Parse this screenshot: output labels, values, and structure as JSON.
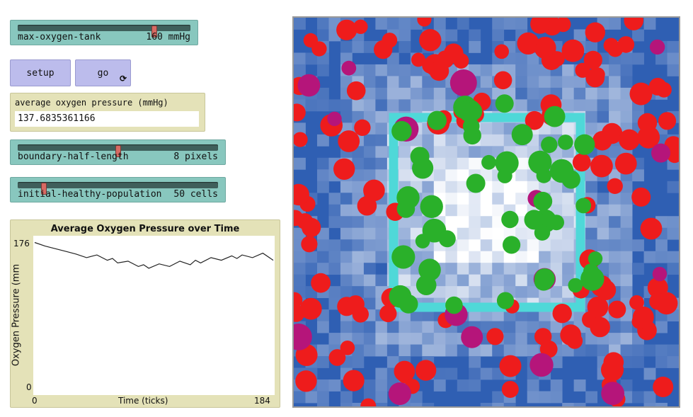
{
  "sliders": {
    "max_oxygen_tank": {
      "label": "max-oxygen-tank",
      "value": "160 mmHg",
      "fraction": 0.79
    },
    "boundary_half_length": {
      "label": "boundary-half-length",
      "value": "8 pixels",
      "fraction": 0.5
    },
    "initial_healthy_population": {
      "label": "initial-healthy-population",
      "value": "50 cells",
      "fraction": 0.13
    }
  },
  "buttons": {
    "setup": "setup",
    "go": "go",
    "go_forever_icon": "forever-loop-icon"
  },
  "monitor": {
    "label": "average oxygen pressure (mmHg)",
    "value": "137.6835361166"
  },
  "plot": {
    "title": "Average Oxygen Pressure over Time",
    "ylabel": "Oxygen Pressure (mm",
    "xlabel": "Time (ticks)",
    "y_max_label": "176",
    "y_min_label": "0",
    "x_min_label": "0",
    "x_max_label": "184"
  },
  "chart_data": {
    "type": "line",
    "title": "Average Oxygen Pressure over Time",
    "xlabel": "Time (ticks)",
    "ylabel": "Oxygen Pressure (mm",
    "xlim": [
      0,
      184
    ],
    "ylim": [
      0,
      176
    ],
    "x": [
      0,
      8,
      16,
      24,
      32,
      40,
      48,
      56,
      60,
      64,
      72,
      80,
      84,
      88,
      96,
      104,
      112,
      120,
      124,
      128,
      136,
      144,
      152,
      156,
      160,
      168,
      176,
      184
    ],
    "values": [
      170,
      166,
      163,
      160,
      157,
      153,
      156,
      150,
      152,
      147,
      149,
      143,
      145,
      141,
      146,
      143,
      149,
      145,
      150,
      147,
      153,
      150,
      155,
      152,
      156,
      153,
      158,
      150
    ]
  },
  "world": {
    "colors": {
      "background": "#2f5fb3",
      "boundary": "#4fd8d8",
      "healthy_cell": "#2ab02a",
      "tumor_cell": "#ee1c1c",
      "dying_cell": "#b5157a"
    }
  }
}
